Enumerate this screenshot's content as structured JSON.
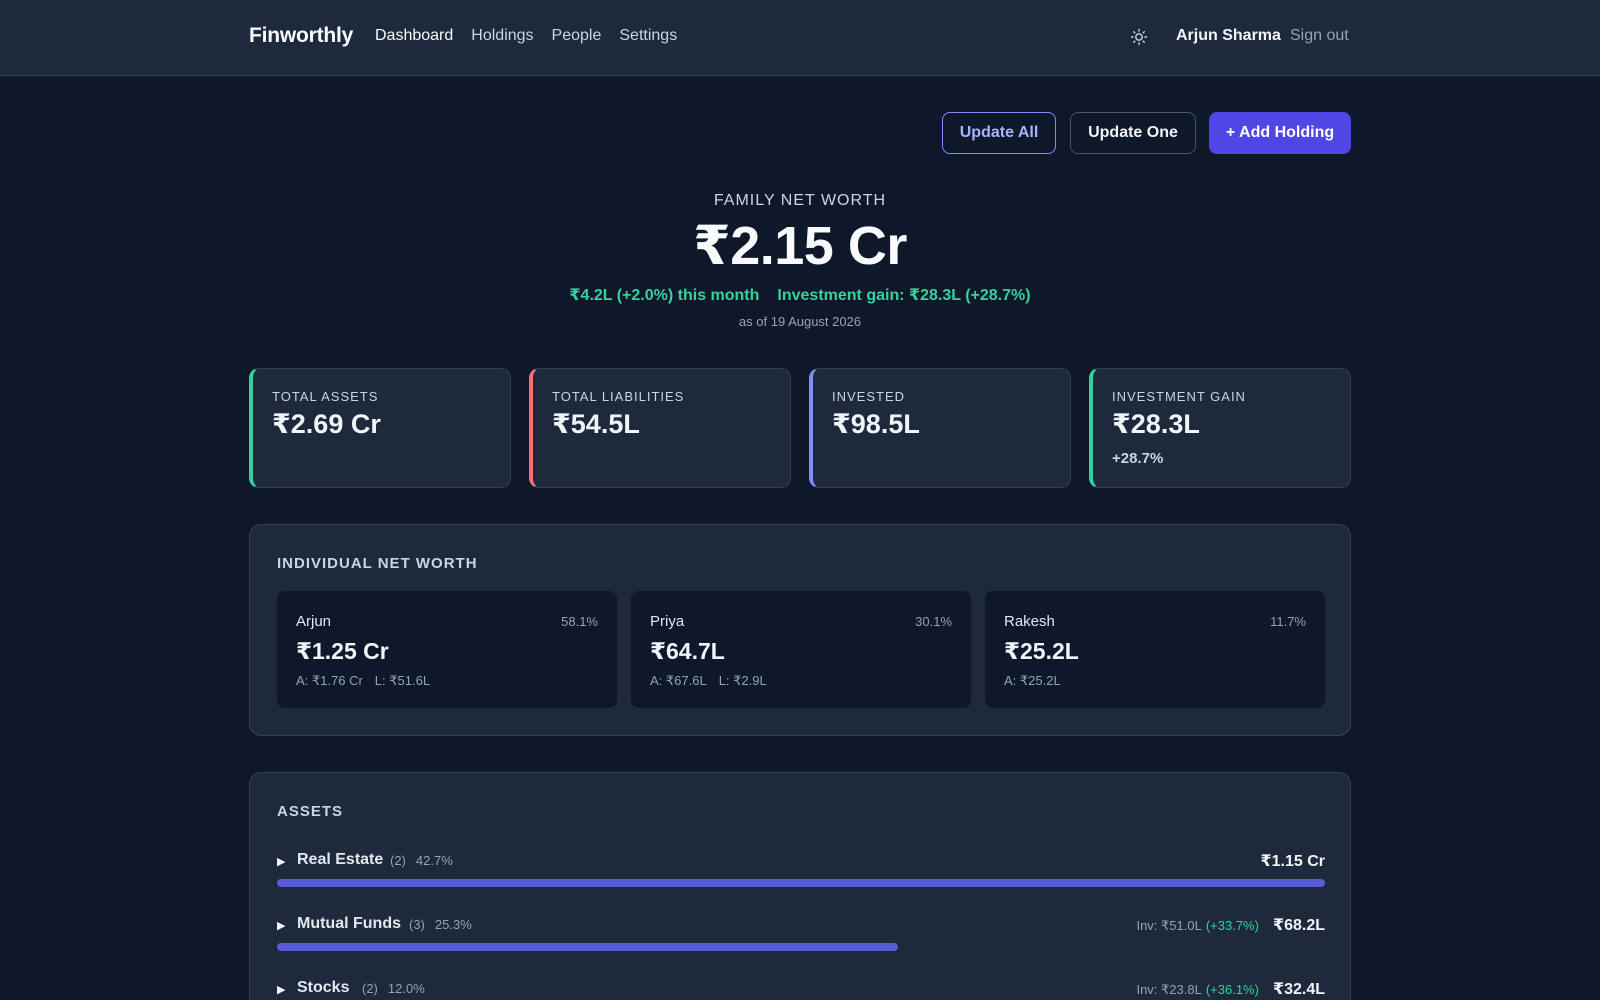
{
  "header": {
    "brand": "Finworthly",
    "nav": [
      "Dashboard",
      "Holdings",
      "People",
      "Settings"
    ],
    "active_nav": "Dashboard",
    "theme_icon": "sun-icon",
    "user_name": "Arjun Sharma",
    "sign_out": "Sign out"
  },
  "actions": {
    "update_all": "Update All",
    "update_one": "Update One",
    "add_holding": "+ Add Holding"
  },
  "hero": {
    "label": "FAMILY NET WORTH",
    "value": "₹2.15 Cr",
    "month_change": "₹4.2L (+2.0%) this month",
    "investment_gain": "Investment gain: ₹28.3L (+28.7%)",
    "as_of": "as of 19 August 2026"
  },
  "summary_cards": [
    {
      "label": "TOTAL ASSETS",
      "value": "₹2.69 Cr",
      "sub": "",
      "accent": "#34d399"
    },
    {
      "label": "TOTAL LIABILITIES",
      "value": "₹54.5L",
      "sub": "",
      "accent": "#f87171"
    },
    {
      "label": "INVESTED",
      "value": "₹98.5L",
      "sub": "",
      "accent": "#818cf8"
    },
    {
      "label": "INVESTMENT GAIN",
      "value": "₹28.3L",
      "sub": "+28.7%",
      "accent": "#34d399"
    }
  ],
  "individual": {
    "title": "INDIVIDUAL NET WORTH",
    "people": [
      {
        "name": "Arjun",
        "pct": "58.1%",
        "value": "₹1.25 Cr",
        "assets": "A: ₹1.76 Cr",
        "liabilities": "L: ₹51.6L"
      },
      {
        "name": "Priya",
        "pct": "30.1%",
        "value": "₹64.7L",
        "assets": "A: ₹67.6L",
        "liabilities": "L: ₹2.9L"
      },
      {
        "name": "Rakesh",
        "pct": "11.7%",
        "value": "₹25.2L",
        "assets": "A: ₹25.2L",
        "liabilities": ""
      }
    ]
  },
  "assets": {
    "title": "ASSETS",
    "rows": [
      {
        "name": "Real Estate",
        "count": "(2)",
        "share": "42.7%",
        "invested": "",
        "gain": "",
        "value": "₹1.15 Cr",
        "bar_fraction": 1.0
      },
      {
        "name": "Mutual Funds",
        "count": "(3)",
        "share": "25.3%",
        "invested": "Inv: ₹51.0L",
        "gain": "(+33.7%)",
        "value": "₹68.2L",
        "bar_fraction": 0.593
      },
      {
        "name": "Stocks",
        "count": "(2)",
        "share": "12.0%",
        "invested": "Inv: ₹23.8L",
        "gain": "(+36.1%)",
        "value": "₹32.4L",
        "bar_fraction": 0.281
      }
    ]
  }
}
